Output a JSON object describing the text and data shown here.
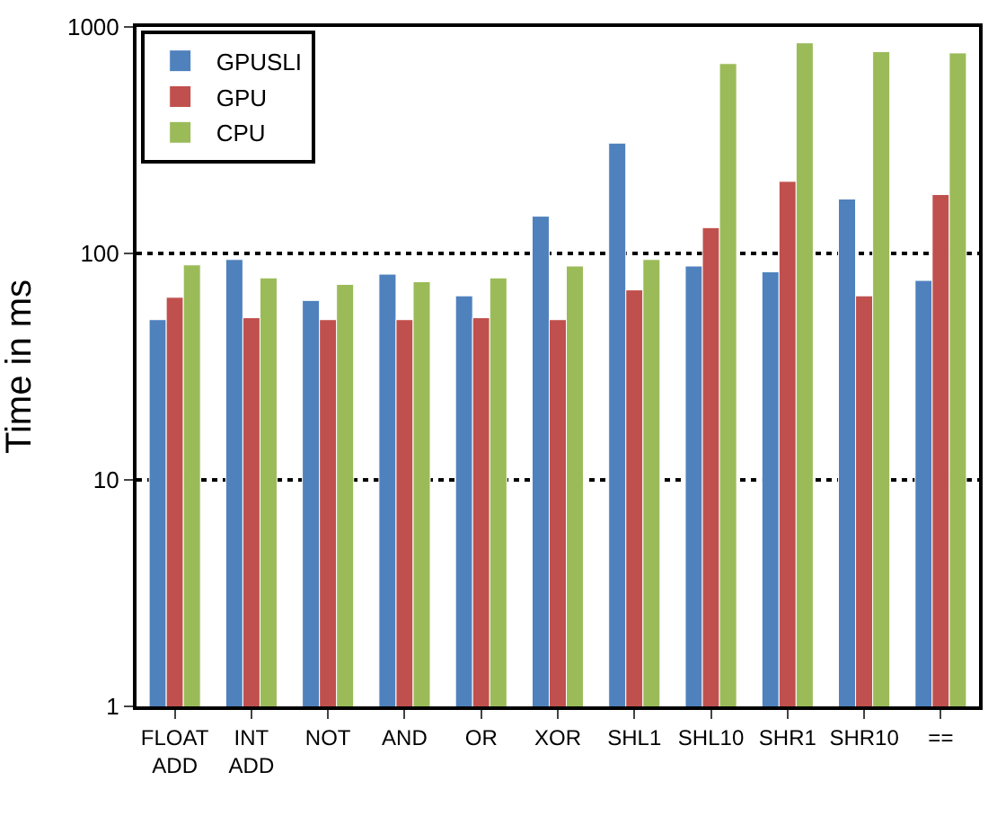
{
  "chart_data": {
    "type": "bar",
    "ylabel": "Time in ms",
    "log": true,
    "ylim": [
      1,
      1000
    ],
    "yticks": [
      1,
      10,
      100,
      1000
    ],
    "grid": "y",
    "legend": "top left",
    "categories": [
      "FLOAT\nADD",
      "INT\nADD",
      "NOT",
      "AND",
      "OR",
      "XOR",
      "SHL1",
      "SHL10",
      "SHR1",
      "SHR10",
      "=="
    ],
    "series": [
      {
        "name": "GPUSLI",
        "color": "#4f81bd",
        "values": [
          51,
          94,
          62,
          81,
          65,
          146,
          307,
          88,
          83,
          174,
          76
        ]
      },
      {
        "name": "GPU",
        "color": "#c0504d",
        "values": [
          64,
          52,
          51,
          51,
          52,
          51,
          69,
          130,
          208,
          65,
          182
        ]
      },
      {
        "name": "CPU",
        "color": "#9bbb59",
        "values": [
          89,
          78,
          73,
          75,
          78,
          88,
          94,
          689,
          851,
          778,
          768
        ]
      }
    ]
  }
}
